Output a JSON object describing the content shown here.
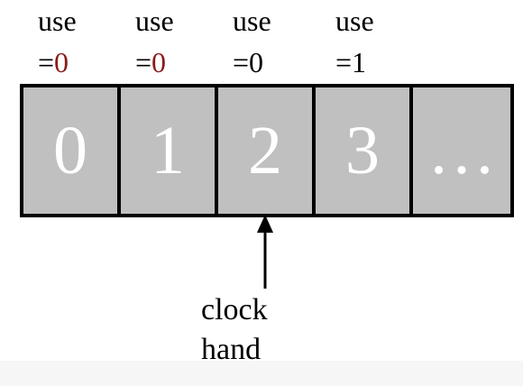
{
  "frames": [
    {
      "index": "0",
      "use_prefix": "use",
      "use_eq": "=",
      "use_value": "0",
      "highlighted": true
    },
    {
      "index": "1",
      "use_prefix": "use",
      "use_eq": "=",
      "use_value": "0",
      "highlighted": true
    },
    {
      "index": "2",
      "use_prefix": "use",
      "use_eq": "=",
      "use_value": "0",
      "highlighted": false
    },
    {
      "index": "3",
      "use_prefix": "use",
      "use_eq": "=",
      "use_value": "1",
      "highlighted": false
    },
    {
      "index": "…"
    }
  ],
  "clock_hand": {
    "line1": "clock",
    "line2": "hand",
    "points_to_frame": 2
  },
  "colors": {
    "frame_fill": "#c0c0c0",
    "frame_text": "#ffffff",
    "highlight_value": "#8b1a1a",
    "border": "#000000"
  }
}
